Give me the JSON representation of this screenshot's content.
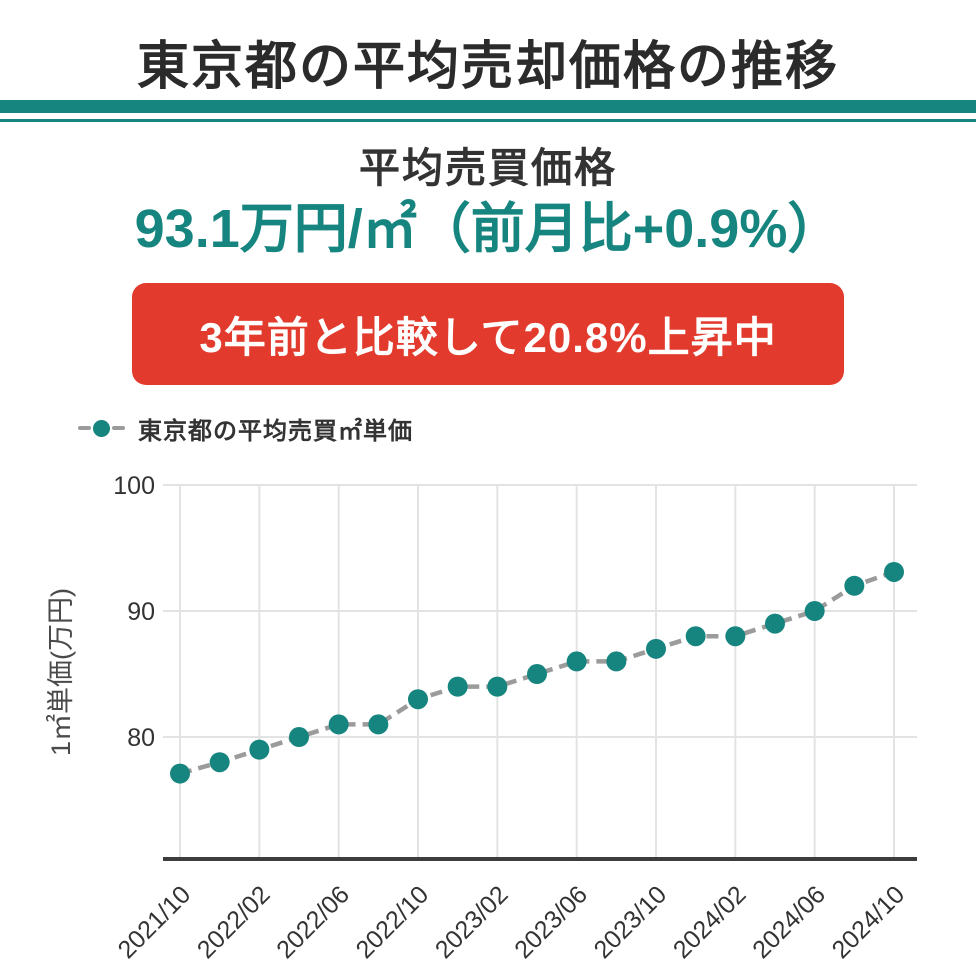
{
  "header": {
    "title": "東京都の平均売却価格の推移",
    "subtitle": "平均売買価格",
    "price": "93.1万円/㎡（前月比+0.9%）",
    "banner": "3年前と比較して20.8%上昇中"
  },
  "legend": {
    "label": "東京都の平均売買㎡単価"
  },
  "colors": {
    "accent_teal": "#17857F",
    "banner_red": "#E23B2E",
    "line_gray": "#9B9B9B",
    "grid_gray": "#E3E3E3",
    "axis_dark": "#3D3D3D",
    "title_text": "#2B2B2B",
    "tick_text": "#333333",
    "axis_label_text": "#4A4A4A"
  },
  "chart_data": {
    "type": "line",
    "series_name": "東京都の平均売買㎡単価",
    "x": [
      "2021/10",
      "2021/12",
      "2022/02",
      "2022/04",
      "2022/06",
      "2022/08",
      "2022/10",
      "2022/12",
      "2023/02",
      "2023/04",
      "2023/06",
      "2023/08",
      "2023/10",
      "2023/12",
      "2024/02",
      "2024/04",
      "2024/06",
      "2024/08",
      "2024/10"
    ],
    "values": [
      77.1,
      78,
      79,
      80,
      81,
      81,
      83,
      84,
      84,
      85,
      86,
      86,
      87,
      88,
      88,
      89,
      90,
      92,
      93.1
    ],
    "x_tick_labels": [
      "2021/10",
      "2022/02",
      "2022/06",
      "2022/10",
      "2023/02",
      "2023/06",
      "2023/10",
      "2024/02",
      "2024/06",
      "2024/10"
    ],
    "y_ticks": [
      80,
      90,
      100
    ],
    "ylim": [
      70.4,
      100
    ],
    "ylabel": "1㎡単価(万円)",
    "xlabel": "",
    "grid": true,
    "marker": "circle",
    "line_style": "dashed",
    "legend_position": "top-left"
  }
}
